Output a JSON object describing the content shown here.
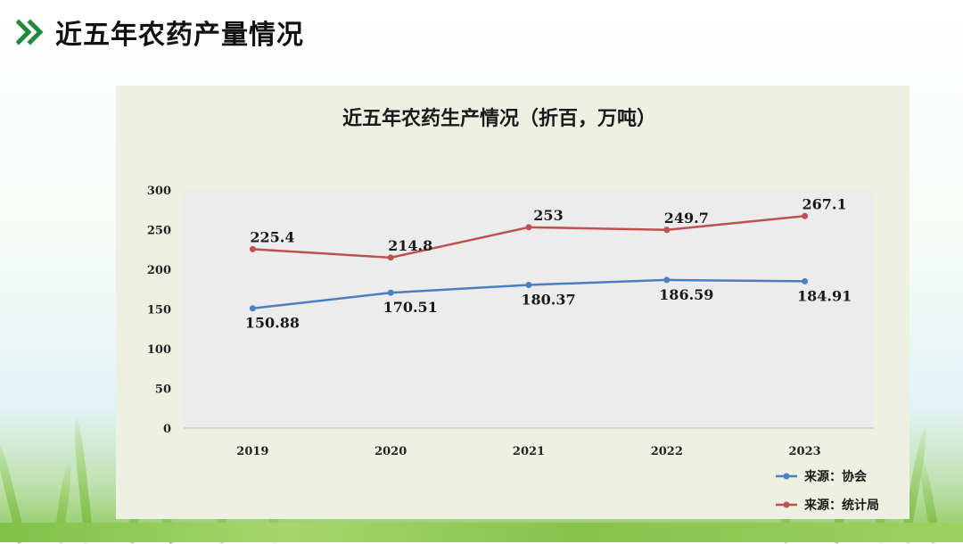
{
  "slide": {
    "title": "近五年农药产量情况"
  },
  "colors": {
    "accent_green": "#1f8a3c",
    "series_blue": "#4a7fc1",
    "series_red": "#c0504d"
  },
  "chart_data": {
    "type": "line",
    "title": "近五年农药生产情况（折百，万吨）",
    "xlabel": "",
    "ylabel": "",
    "x": [
      "2019",
      "2020",
      "2021",
      "2022",
      "2023"
    ],
    "ylim": [
      0,
      300
    ],
    "yticks": [
      0,
      50,
      100,
      150,
      200,
      250,
      300
    ],
    "grid": false,
    "legend": "bottom-right",
    "series": [
      {
        "name": "来源：协会",
        "color": "#4a7fc1",
        "values": [
          150.88,
          170.51,
          180.37,
          186.59,
          184.91
        ],
        "labels": [
          "150.88",
          "170.51",
          "180.37",
          "186.59",
          "184.91"
        ],
        "label_position": "below"
      },
      {
        "name": "来源：统计局",
        "color": "#c0504d",
        "values": [
          225.4,
          214.8,
          253,
          249.7,
          267.1
        ],
        "labels": [
          "225.4",
          "214.8",
          "253",
          "249.7",
          "267.1"
        ],
        "label_position": "above"
      }
    ]
  }
}
